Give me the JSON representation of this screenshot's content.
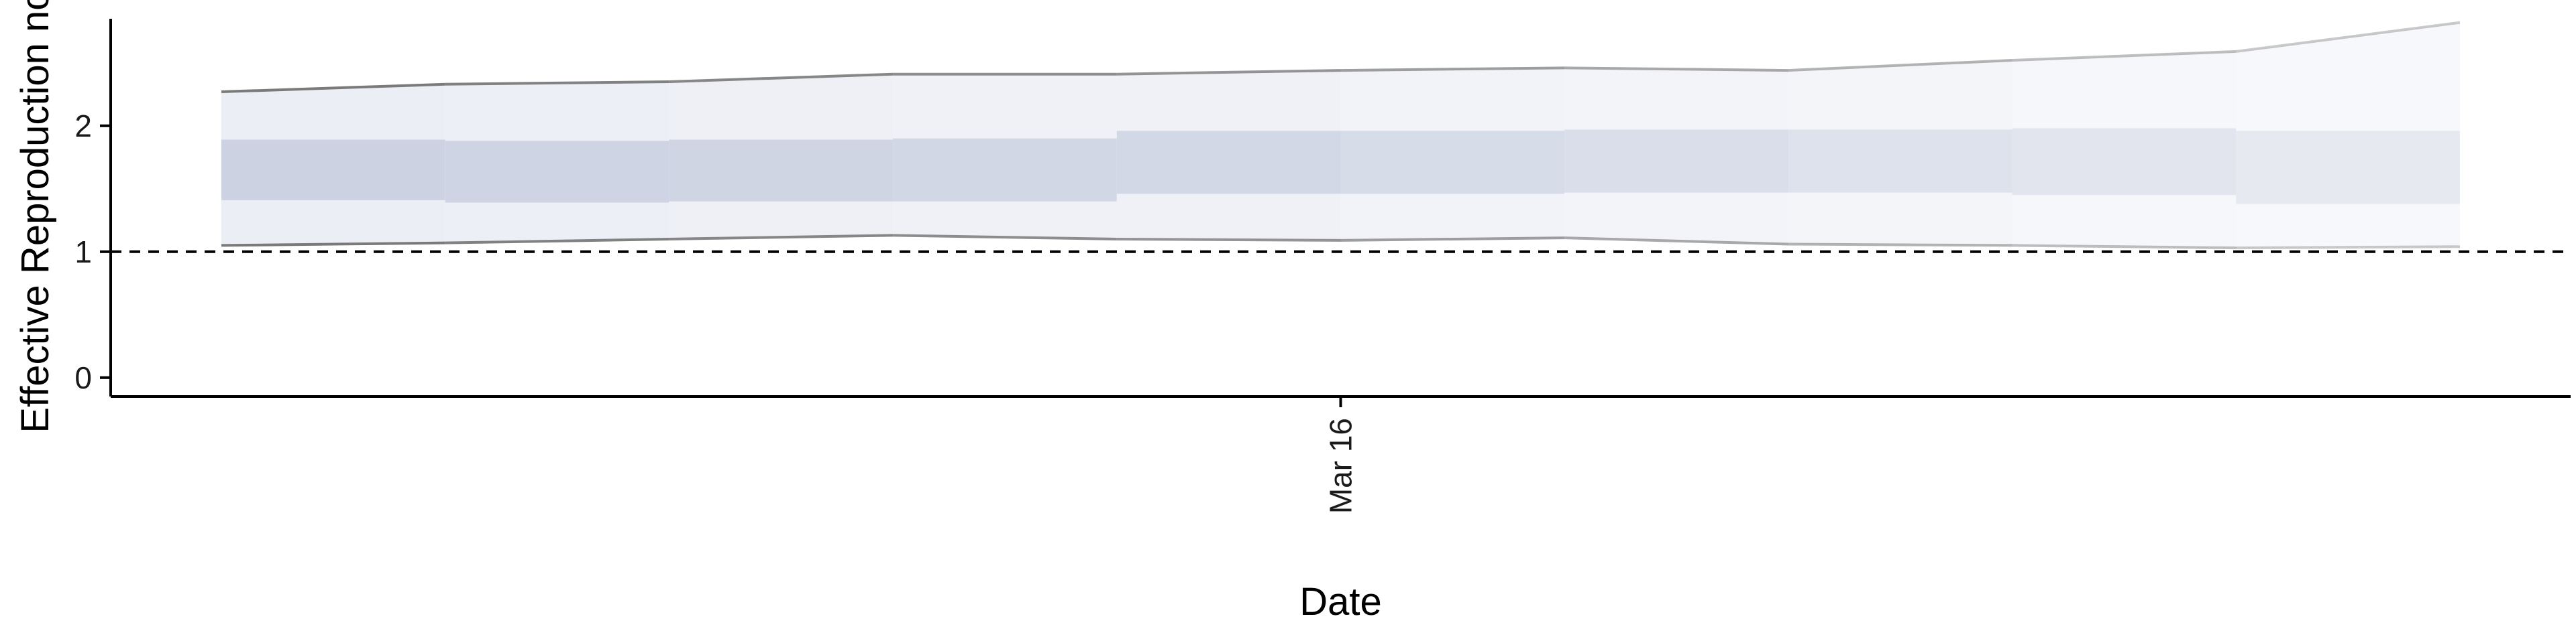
{
  "chart_data": {
    "type": "area",
    "title": "",
    "xlabel": "Date",
    "ylabel": "Effective Reproduction no",
    "x_tick_labels": [
      "Mar 16"
    ],
    "y_ticks": [
      0,
      1,
      2
    ],
    "ylim": [
      -0.15,
      2.85
    ],
    "grid": false,
    "reference_line": {
      "y": 1,
      "style": "dashed"
    },
    "x_day_offsets": [
      -5,
      -4,
      -3,
      -2,
      -1,
      0,
      1,
      2,
      3,
      4,
      5
    ],
    "x_tick_day_offset": 0,
    "series": [
      {
        "name": "",
        "role": "upper_90",
        "values": [
          2.27,
          2.33,
          2.35,
          2.41,
          2.41,
          2.44,
          2.46,
          2.44,
          2.52,
          2.59,
          2.82
        ]
      },
      {
        "name": "",
        "role": "upper_50",
        "values": [
          1.89,
          1.88,
          1.89,
          1.9,
          1.96,
          1.96,
          1.97,
          1.97,
          1.98,
          1.96,
          2.1
        ]
      },
      {
        "name": "",
        "role": "lower_50",
        "values": [
          1.41,
          1.39,
          1.4,
          1.4,
          1.46,
          1.46,
          1.47,
          1.47,
          1.45,
          1.38,
          1.42
        ]
      },
      {
        "name": "",
        "role": "lower_90",
        "values": [
          1.05,
          1.07,
          1.1,
          1.13,
          1.1,
          1.09,
          1.11,
          1.06,
          1.05,
          1.03,
          1.04
        ]
      }
    ],
    "segment_opacity": [
      1.0,
      0.95,
      0.9,
      0.85,
      0.8,
      0.72,
      0.64,
      0.56,
      0.48,
      0.4,
      0.32
    ],
    "colors": {
      "outer_band": "#eceef5",
      "inner_band": "#ccd2e2",
      "edge_line": "#7a7a7a",
      "axis": "#000000"
    }
  }
}
